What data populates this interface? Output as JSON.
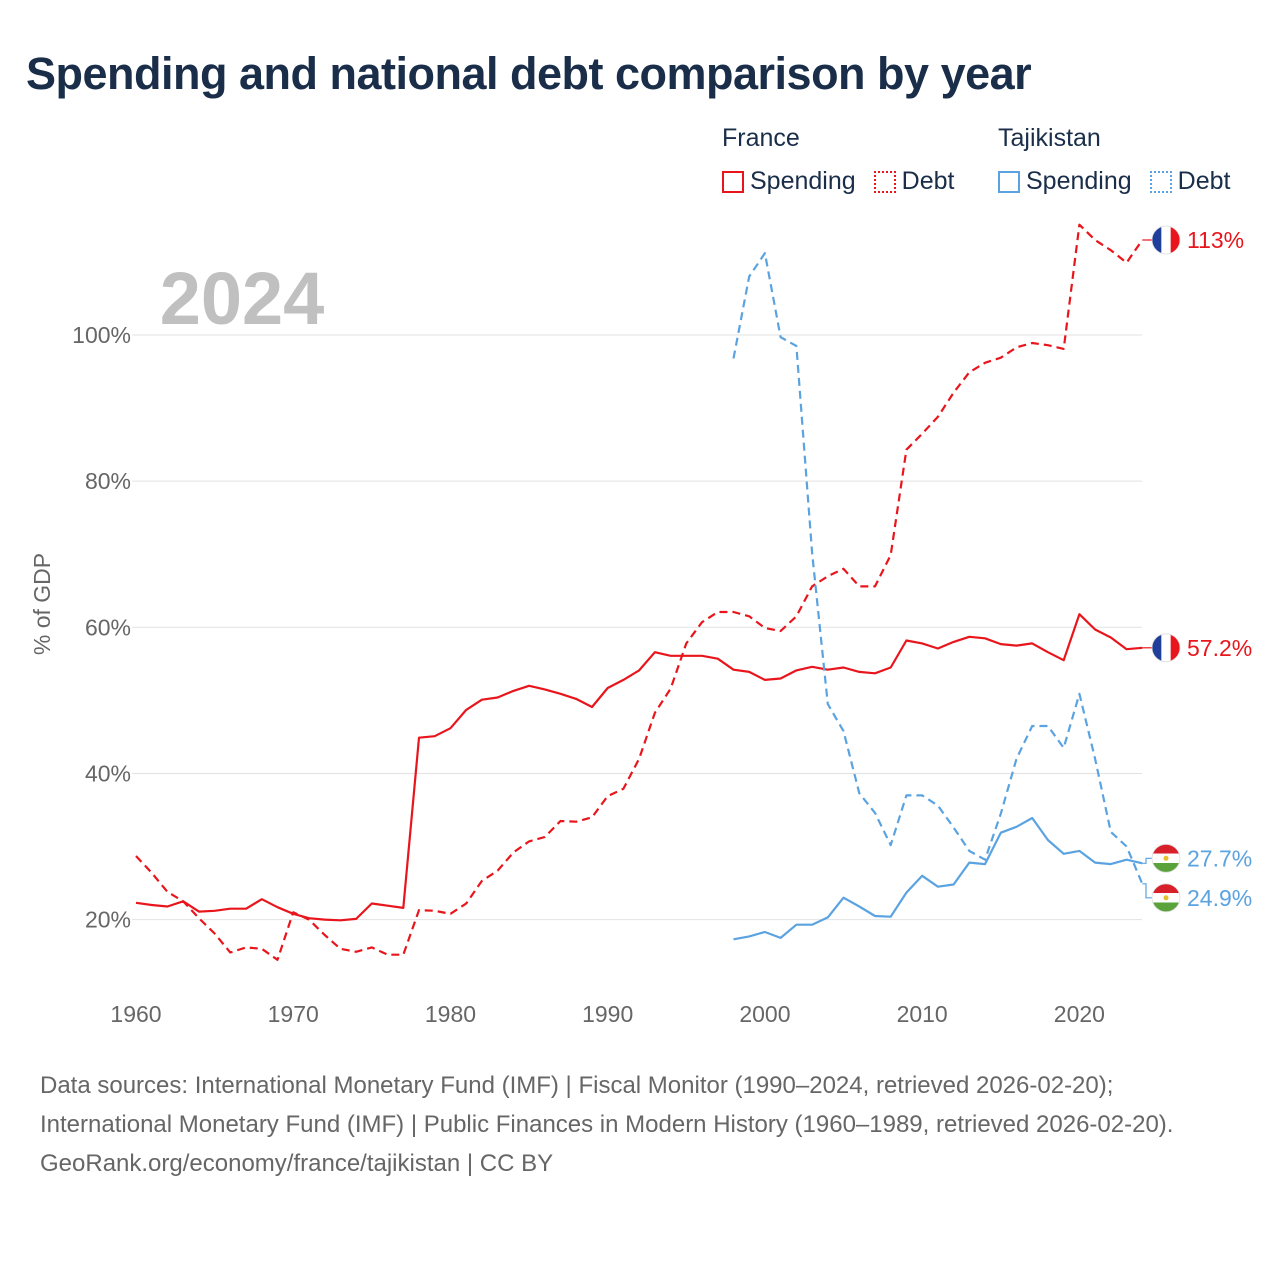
{
  "title": "Spending and national debt comparison by year",
  "legend": {
    "groups": [
      {
        "name": "France",
        "color": "#e8161c",
        "items": [
          {
            "label": "Spending",
            "style": "solid"
          },
          {
            "label": "Debt",
            "style": "dotted"
          }
        ]
      },
      {
        "name": "Tajikistan",
        "color": "#5ba3e0",
        "items": [
          {
            "label": "Spending",
            "style": "solid"
          },
          {
            "label": "Debt",
            "style": "dotted"
          }
        ]
      }
    ]
  },
  "year_label": "2024",
  "footer": {
    "sources": "Data sources: International Monetary Fund (IMF) | Fiscal Monitor (1990–2024, retrieved 2026-02-20); International Monetary Fund (IMF) | Public Finances in Modern History (1960–1989, retrieved 2026-02-20).",
    "credit": "GeoRank.org/economy/france/tajikistan | CC BY"
  },
  "chart_data": {
    "type": "line",
    "ylabel": "% of GDP",
    "xlim": [
      1960,
      2025
    ],
    "ylim": [
      9,
      113
    ],
    "x_ticks": [
      1960,
      1970,
      1980,
      1990,
      2000,
      2010,
      2020
    ],
    "y_ticks": [
      20,
      40,
      60,
      80,
      100
    ],
    "y_tick_labels": [
      "20%",
      "40%",
      "60%",
      "80%",
      "100%"
    ],
    "grid": true,
    "series": [
      {
        "name": "France Spending",
        "country": "France",
        "metric": "Spending",
        "color": "#e8161c",
        "dash": "solid",
        "flag": "france",
        "end_label": "57.2%",
        "x_start": 1960,
        "values": [
          22.3,
          22.0,
          21.8,
          22.5,
          21.1,
          21.2,
          21.5,
          21.5,
          22.8,
          21.7,
          20.8,
          20.2,
          20.0,
          19.9,
          20.1,
          22.2,
          21.9,
          21.6,
          44.9,
          45.1,
          46.2,
          48.7,
          50.1,
          50.4,
          51.3,
          52.0,
          51.5,
          50.9,
          50.2,
          49.1,
          51.7,
          52.8,
          54.1,
          56.6,
          56.1,
          56.1,
          56.1,
          55.7,
          54.2,
          53.9,
          52.8,
          53.0,
          54.1,
          54.6,
          54.2,
          54.5,
          53.9,
          53.7,
          54.5,
          58.2,
          57.8,
          57.1,
          58.0,
          58.7,
          58.5,
          57.7,
          57.5,
          57.8,
          56.6,
          55.5,
          61.8,
          59.7,
          58.6,
          57.0,
          57.2
        ],
        "last_x": 2024,
        "last_y": 57.2
      },
      {
        "name": "France Debt",
        "country": "France",
        "metric": "Debt",
        "color": "#e8161c",
        "dash": "dashed",
        "flag": "france",
        "end_label": "113%",
        "x_start": 1960,
        "values": [
          28.7,
          26.4,
          23.8,
          22.5,
          20.2,
          18.1,
          15.5,
          16.2,
          16.0,
          14.5,
          21.0,
          20.0,
          17.9,
          16.0,
          15.6,
          16.2,
          15.2,
          15.2,
          21.3,
          21.2,
          20.8,
          22.2,
          25.3,
          26.7,
          29.2,
          30.7,
          31.3,
          33.5,
          33.4,
          34.0,
          36.9,
          37.9,
          42.0,
          48.3,
          51.6,
          57.8,
          60.7,
          62.1,
          62.1,
          61.5,
          59.9,
          59.5,
          61.5,
          65.6,
          67.0,
          68.0,
          65.6,
          65.6,
          69.9,
          84.3,
          86.5,
          88.8,
          92.1,
          94.9,
          96.2,
          96.9,
          98.3,
          98.9,
          98.6,
          98.1,
          115.1,
          113.0,
          111.6,
          109.9,
          113.0
        ],
        "last_x": 2024,
        "last_y": 113.0
      },
      {
        "name": "Tajikistan Spending",
        "country": "Tajikistan",
        "metric": "Spending",
        "color": "#5ba3e0",
        "dash": "solid",
        "flag": "tajikistan",
        "end_label": "27.7%",
        "x_start": 1998,
        "values": [
          17.3,
          17.7,
          18.3,
          17.5,
          19.3,
          19.3,
          20.3,
          23.0,
          21.8,
          20.5,
          20.4,
          23.7,
          26.0,
          24.5,
          24.8,
          27.8,
          27.6,
          31.9,
          32.7,
          33.9,
          30.9,
          29.0,
          29.4,
          27.8,
          27.6,
          28.2,
          27.7
        ],
        "last_x": 2024,
        "last_y": 27.7
      },
      {
        "name": "Tajikistan Debt",
        "country": "Tajikistan",
        "metric": "Debt",
        "color": "#5ba3e0",
        "dash": "dashed",
        "flag": "tajikistan",
        "end_label": "24.9%",
        "x_start": 1998,
        "values": [
          96.8,
          108.0,
          111.2,
          99.7,
          98.5,
          70.2,
          49.5,
          45.8,
          37.3,
          34.6,
          30.2,
          37.0,
          37.0,
          35.6,
          32.6,
          29.4,
          28.2,
          34.5,
          42.0,
          46.5,
          46.5,
          43.5,
          50.9,
          42.0,
          32.0,
          30.0,
          24.9
        ],
        "last_x": 2024,
        "last_y": 24.9
      }
    ]
  }
}
